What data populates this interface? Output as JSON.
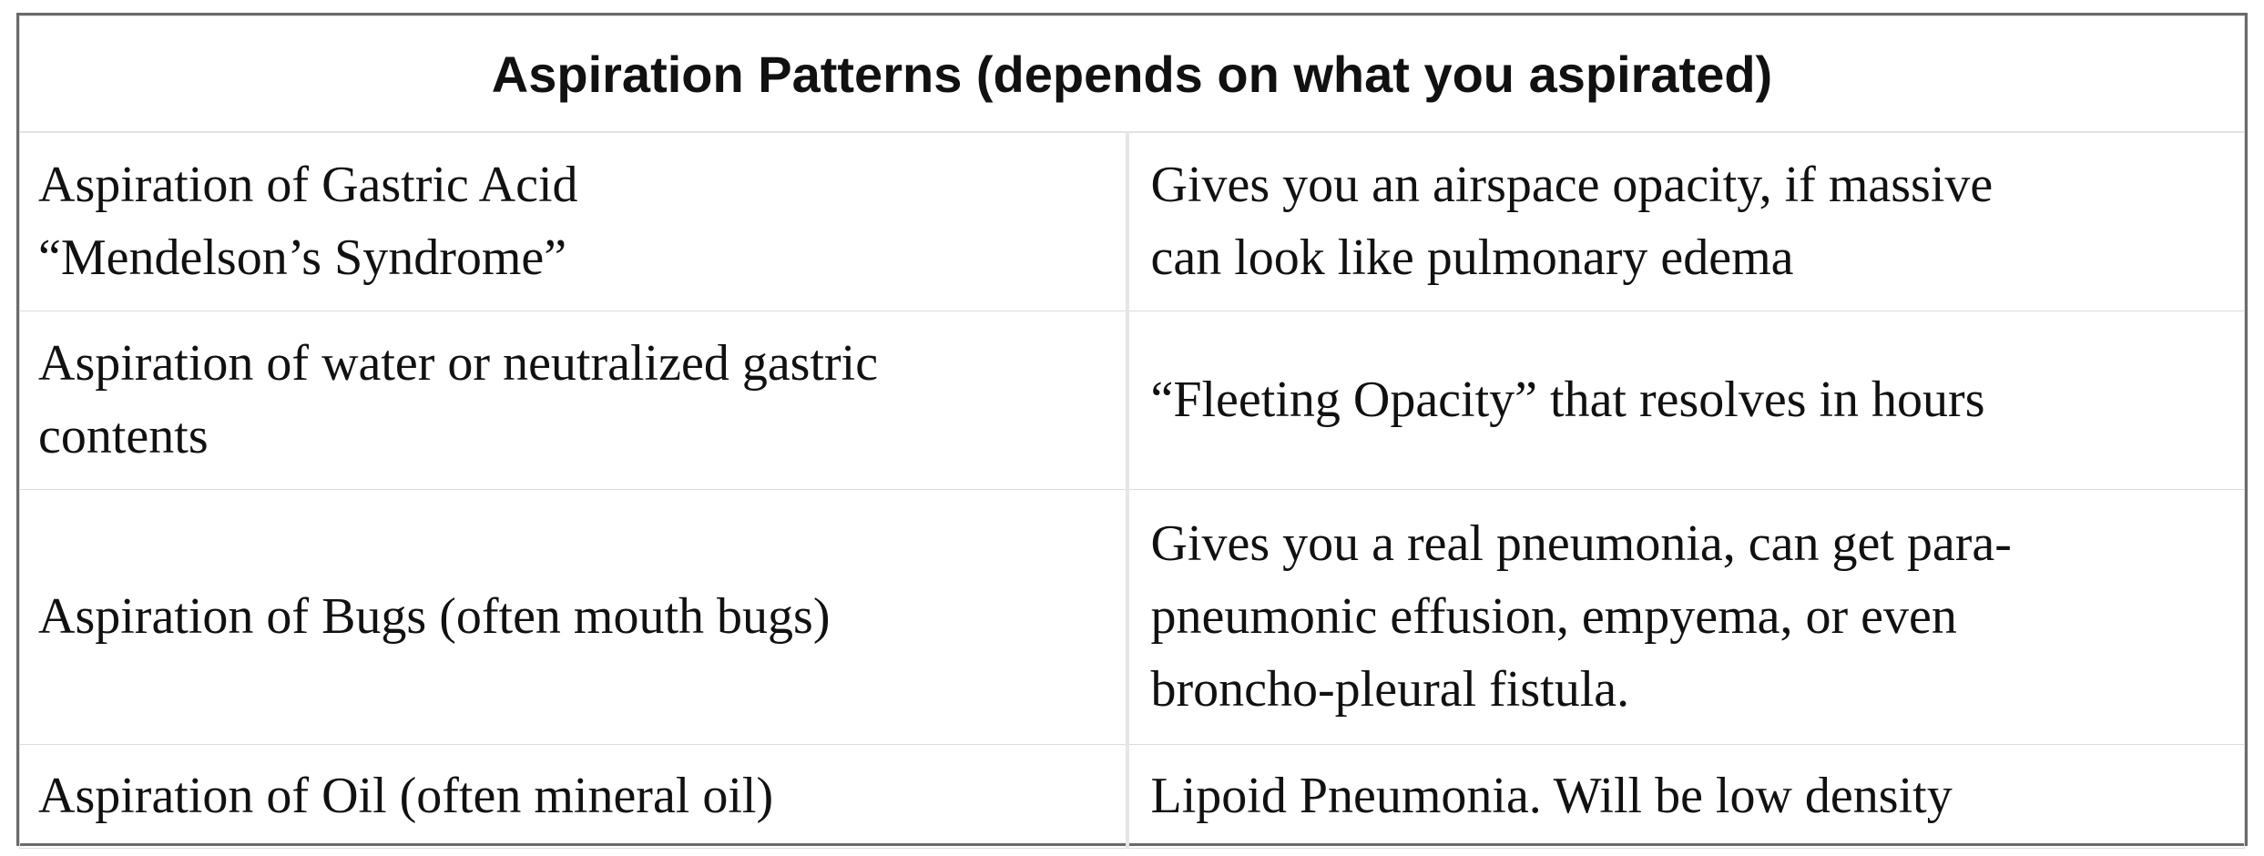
{
  "table": {
    "title": "Aspiration Patterns (depends on what you aspirated)",
    "rows": [
      {
        "left": [
          "Aspiration of Gastric Acid",
          "“Mendelson’s Syndrome”"
        ],
        "right": [
          "Gives you an airspace opacity, if massive",
          "can look like pulmonary edema"
        ]
      },
      {
        "left": [
          "Aspiration of water or neutralized gastric",
          "contents"
        ],
        "right": [
          "“Fleeting Opacity” that resolves in hours"
        ]
      },
      {
        "left": [
          "Aspiration of Bugs (often mouth bugs)"
        ],
        "right": [
          "Gives you a real pneumonia, can get para-",
          "pneumonic effusion, empyema, or even",
          "broncho-pleural fistula."
        ]
      },
      {
        "left": [
          "Aspiration of Oil (often mineral oil)"
        ],
        "right": [
          "Lipoid Pneumonia. Will be low density"
        ]
      }
    ]
  }
}
